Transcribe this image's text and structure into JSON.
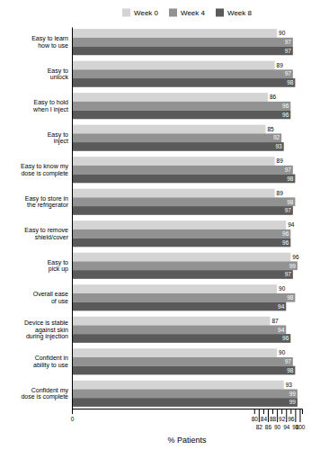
{
  "chart_data": {
    "type": "bar",
    "orientation": "horizontal",
    "categories": [
      "Easy to learn\nhow to use",
      "Easy to\nunlock",
      "Easy to hold\nwhen I inject",
      "Easy to\ninject",
      "Easy to know my\ndose is complete",
      "Easy to store in\nthe refrigerator",
      "Easy to remove\nshield/cover",
      "Easy to\npick up",
      "Overall ease\nof use",
      "Device is stable\nagainst skin\nduring injection",
      "Confident in\nability to use",
      "Confident my\ndose is complete"
    ],
    "series": [
      {
        "name": "Week 0",
        "color": "#d4d4d4",
        "values": [
          90,
          89,
          86,
          85,
          89,
          89,
          94,
          96,
          90,
          87,
          90,
          93
        ]
      },
      {
        "name": "Week 4",
        "color": "#929292",
        "values": [
          97,
          97,
          96,
          92,
          97,
          98,
          96,
          99,
          98,
          94,
          97,
          99
        ]
      },
      {
        "name": "Week 8",
        "color": "#5a5a5a",
        "values": [
          97,
          98,
          96,
          93,
          98,
          97,
          96,
          97,
          94,
          96,
          98,
          99
        ]
      }
    ],
    "xlabel": "% Patients",
    "xlim": [
      0,
      101
    ],
    "xticks": [
      0,
      80,
      82,
      84,
      86,
      88,
      90,
      92,
      94,
      96,
      98,
      100
    ],
    "grid": false,
    "legend": "top",
    "data_labels": true
  }
}
